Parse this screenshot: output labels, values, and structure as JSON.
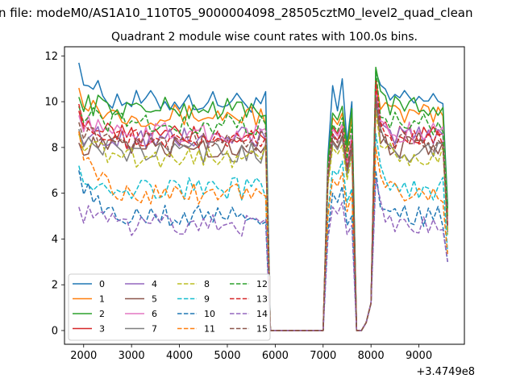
{
  "figure": {
    "suptitle": "n file: modeM0/AS1A10_110T05_9000004098_28505cztM0_level2_quad_clean",
    "title": "Quadrant 2 module wise count rates with 100.0s bins.",
    "x_offset_label": "+3.4749e8"
  },
  "chart_data": {
    "type": "line",
    "title": "Quadrant 2 module wise count rates with 100.0s bins.",
    "xlabel": "",
    "ylabel": "",
    "x_offset": "+3.4749e8",
    "xlim": [
      1600,
      9950
    ],
    "ylim": [
      -0.6,
      12.4
    ],
    "xticks": [
      2000,
      3000,
      4000,
      5000,
      6000,
      7000,
      8000,
      9000
    ],
    "yticks": [
      0,
      2,
      4,
      6,
      8,
      10,
      12
    ],
    "legend_location": "lower-left",
    "x_segments": [
      {
        "start": 1900,
        "end": 5800,
        "step": 100
      },
      {
        "start": 5900,
        "end": 7000,
        "step": 100
      },
      {
        "start": 7100,
        "end": 7600,
        "step": 100
      },
      {
        "start": 7700,
        "end": 8000,
        "step": 100
      },
      {
        "start": 8100,
        "end": 9600,
        "step": 100
      }
    ],
    "series": [
      {
        "name": "0",
        "color": "#1f77b4",
        "dash": "solid",
        "level": 10.0,
        "start": 11.7,
        "burst": [
          7.6,
          10.7,
          9.6,
          11.0,
          8.2
        ],
        "peak": 11.3
      },
      {
        "name": "1",
        "color": "#ff7f0e",
        "dash": "solid",
        "level": 9.4,
        "start": 10.6,
        "burst": [
          7.2,
          9.3,
          9.0,
          9.5,
          7.8
        ],
        "peak": 11.0
      },
      {
        "name": "2",
        "color": "#2ca02c",
        "dash": "solid",
        "level": 9.7,
        "start": 10.2,
        "burst": [
          7.4,
          9.5,
          9.2,
          9.8,
          8.0
        ],
        "peak": 11.5
      },
      {
        "name": "3",
        "color": "#d62728",
        "dash": "solid",
        "level": 8.5,
        "start": 9.6,
        "burst": [
          6.9,
          8.9,
          8.6,
          9.0,
          7.3
        ],
        "peak": 10.9
      },
      {
        "name": "4",
        "color": "#9467bd",
        "dash": "solid",
        "level": 8.4,
        "start": 8.7,
        "burst": [
          6.8,
          8.6,
          8.3,
          8.8,
          7.1
        ],
        "peak": 10.3
      },
      {
        "name": "5",
        "color": "#8c564b",
        "dash": "solid",
        "level": 8.0,
        "start": 8.2,
        "burst": [
          6.6,
          8.3,
          8.0,
          8.5,
          6.9
        ],
        "peak": 10.1
      },
      {
        "name": "6",
        "color": "#e377c2",
        "dash": "solid",
        "level": 8.6,
        "start": 9.4,
        "burst": [
          7.0,
          8.8,
          8.5,
          9.0,
          7.2
        ],
        "peak": 10.6
      },
      {
        "name": "7",
        "color": "#7f7f7f",
        "dash": "solid",
        "level": 7.8,
        "start": 8.8,
        "burst": [
          6.5,
          8.2,
          7.9,
          8.4,
          6.8
        ],
        "peak": 9.9
      },
      {
        "name": "8",
        "color": "#bcbd22",
        "dash": "dashed",
        "level": 7.6,
        "start": 8.6,
        "burst": [
          6.3,
          8.0,
          7.7,
          8.1,
          6.6
        ],
        "peak": 9.6
      },
      {
        "name": "9",
        "color": "#17becf",
        "dash": "dashed",
        "level": 6.2,
        "start": 7.2,
        "burst": [
          5.2,
          7.0,
          6.8,
          7.4,
          5.6
        ],
        "peak": 8.6
      },
      {
        "name": "10",
        "color": "#1f77b4",
        "dash": "dashed",
        "level": 5.0,
        "start": 7.0,
        "burst": [
          4.3,
          6.0,
          5.6,
          6.3,
          4.6
        ],
        "peak": 7.0
      },
      {
        "name": "11",
        "color": "#ff7f0e",
        "dash": "dashed",
        "level": 6.0,
        "start": 8.7,
        "burst": [
          5.0,
          6.6,
          6.3,
          6.9,
          5.2
        ],
        "peak": 8.0
      },
      {
        "name": "12",
        "color": "#2ca02c",
        "dash": "dashed",
        "level": 9.0,
        "start": 9.8,
        "burst": [
          7.0,
          9.0,
          8.7,
          9.3,
          7.5
        ],
        "peak": 11.4
      },
      {
        "name": "13",
        "color": "#d62728",
        "dash": "dashed",
        "level": 8.3,
        "start": 9.9,
        "burst": [
          6.8,
          8.6,
          8.3,
          8.8,
          7.1
        ],
        "peak": 10.8
      },
      {
        "name": "14",
        "color": "#9467bd",
        "dash": "dashed",
        "level": 4.6,
        "start": 5.4,
        "burst": [
          4.0,
          5.4,
          5.1,
          5.6,
          4.2
        ],
        "peak": 6.6
      },
      {
        "name": "15",
        "color": "#8c564b",
        "dash": "dashed",
        "level": 8.2,
        "start": 9.1,
        "burst": [
          6.7,
          8.5,
          8.2,
          8.7,
          7.0
        ],
        "peak": 10.2
      }
    ]
  }
}
